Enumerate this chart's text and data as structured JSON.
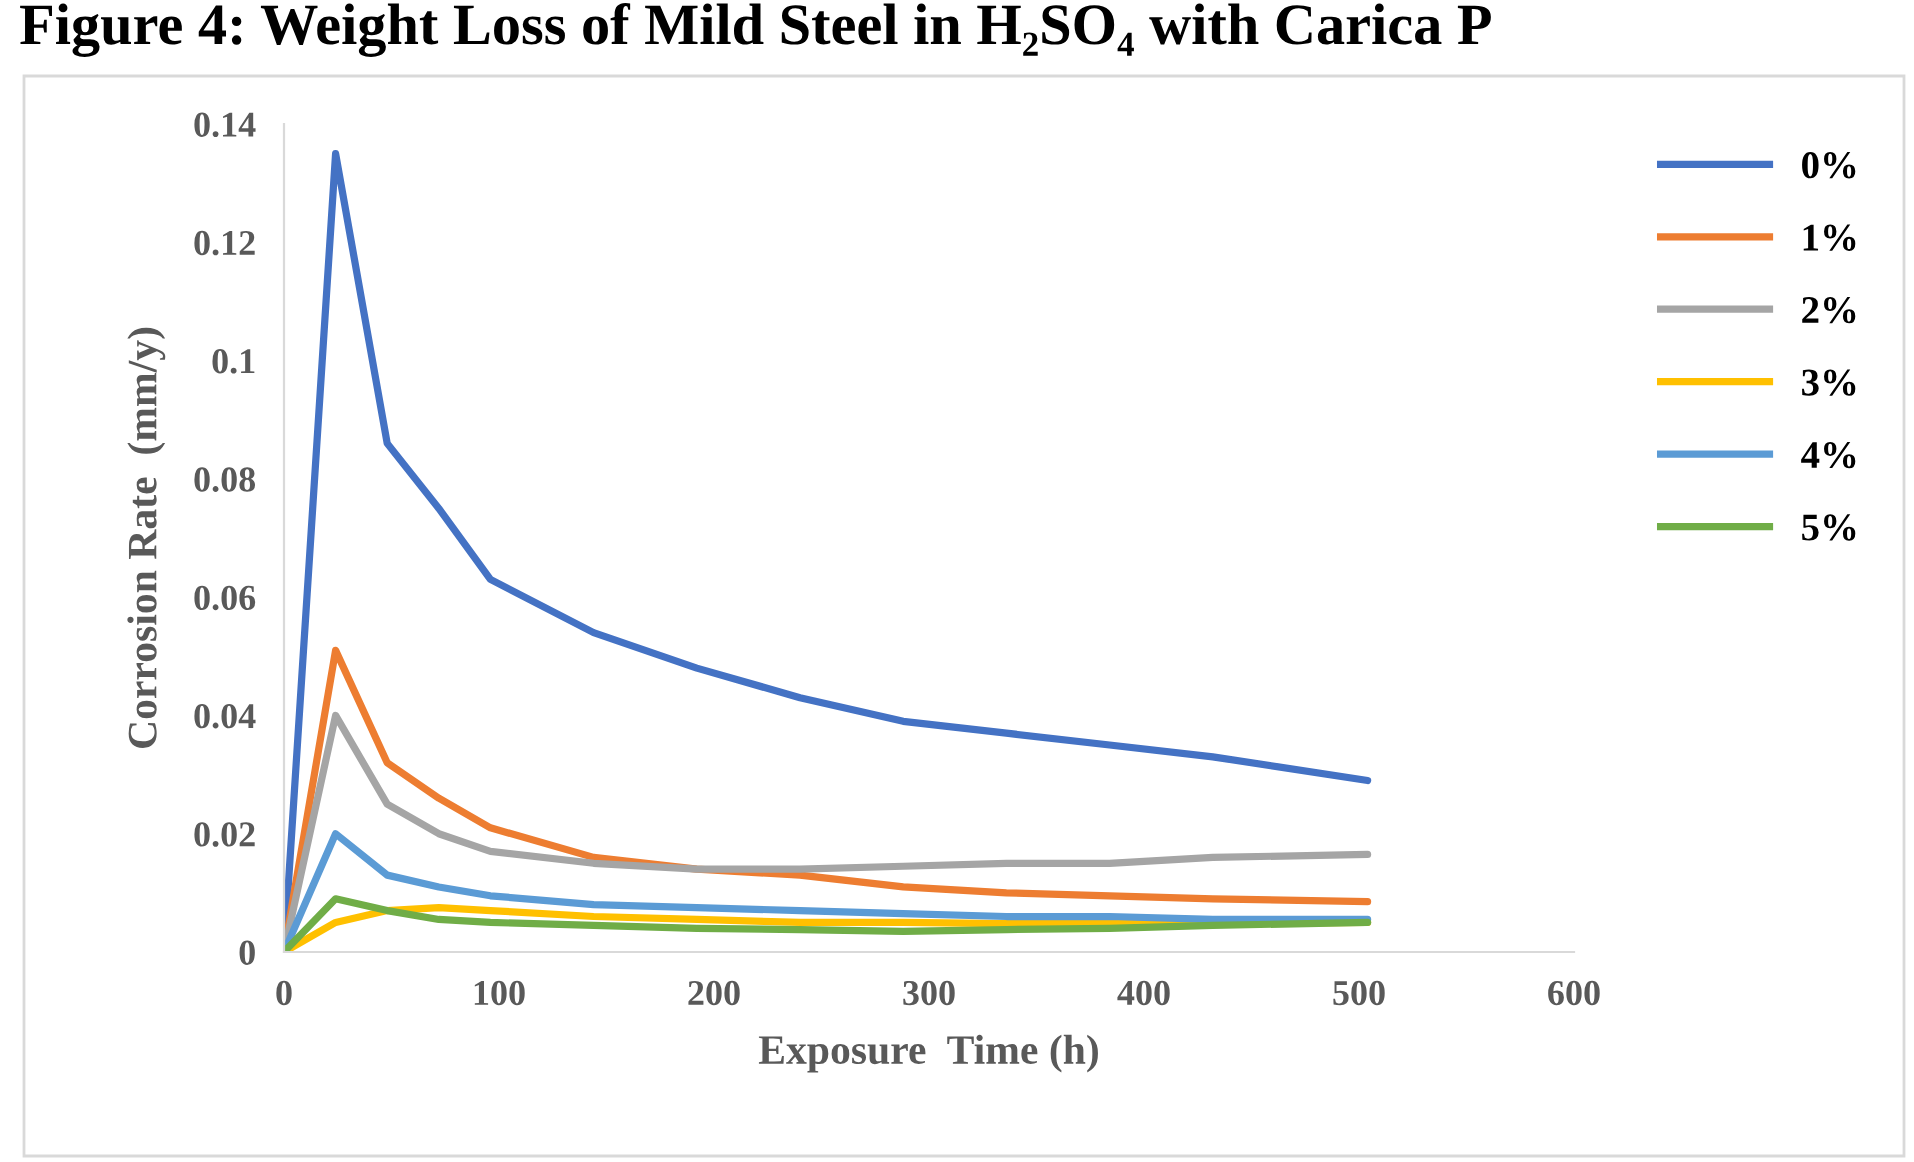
{
  "chart_data": {
    "type": "line",
    "title": "Figure 4: Weight Loss of Mild Steel in H₂SO₄ with Carica P",
    "xlabel": "Exposure  Time (h)",
    "ylabel": "Corrosion Rate  (mm/y)",
    "x": [
      0,
      24,
      48,
      72,
      96,
      144,
      192,
      240,
      288,
      336,
      384,
      432,
      504
    ],
    "series": [
      {
        "name": "0%",
        "color": "#4472c4",
        "values": [
          0,
          0.135,
          0.086,
          0.075,
          0.063,
          0.054,
          0.048,
          0.043,
          0.039,
          0.037,
          0.035,
          0.033,
          0.029
        ]
      },
      {
        "name": "1%",
        "color": "#ed7d31",
        "values": [
          0,
          0.051,
          0.032,
          0.026,
          0.021,
          0.016,
          0.014,
          0.013,
          0.011,
          0.01,
          0.0095,
          0.009,
          0.0085
        ]
      },
      {
        "name": "2%",
        "color": "#a5a5a5",
        "values": [
          0,
          0.04,
          0.025,
          0.02,
          0.017,
          0.015,
          0.014,
          0.014,
          0.0145,
          0.015,
          0.015,
          0.016,
          0.0165
        ]
      },
      {
        "name": "3%",
        "color": "#ffc000",
        "values": [
          0,
          0.005,
          0.007,
          0.0075,
          0.007,
          0.006,
          0.0055,
          0.005,
          0.005,
          0.0048,
          0.0048,
          0.0048,
          0.005
        ]
      },
      {
        "name": "4%",
        "color": "#5b9bd5",
        "values": [
          0,
          0.02,
          0.013,
          0.011,
          0.0095,
          0.008,
          0.0075,
          0.007,
          0.0065,
          0.006,
          0.006,
          0.0055,
          0.0055
        ]
      },
      {
        "name": "5%",
        "color": "#70ad47",
        "values": [
          0,
          0.009,
          0.007,
          0.0055,
          0.005,
          0.0045,
          0.004,
          0.0038,
          0.0035,
          0.0038,
          0.004,
          0.0045,
          0.005
        ]
      }
    ],
    "xlim": [
      0,
      600
    ],
    "xticks": [
      0,
      100,
      200,
      300,
      400,
      500,
      600
    ],
    "ylim": [
      0,
      0.14
    ],
    "yticks": [
      0,
      0.02,
      0.04,
      0.06,
      0.08,
      0.1,
      0.12,
      0.14
    ],
    "grid": false,
    "legend": "top right",
    "marker": "none",
    "line_style": "solid"
  }
}
